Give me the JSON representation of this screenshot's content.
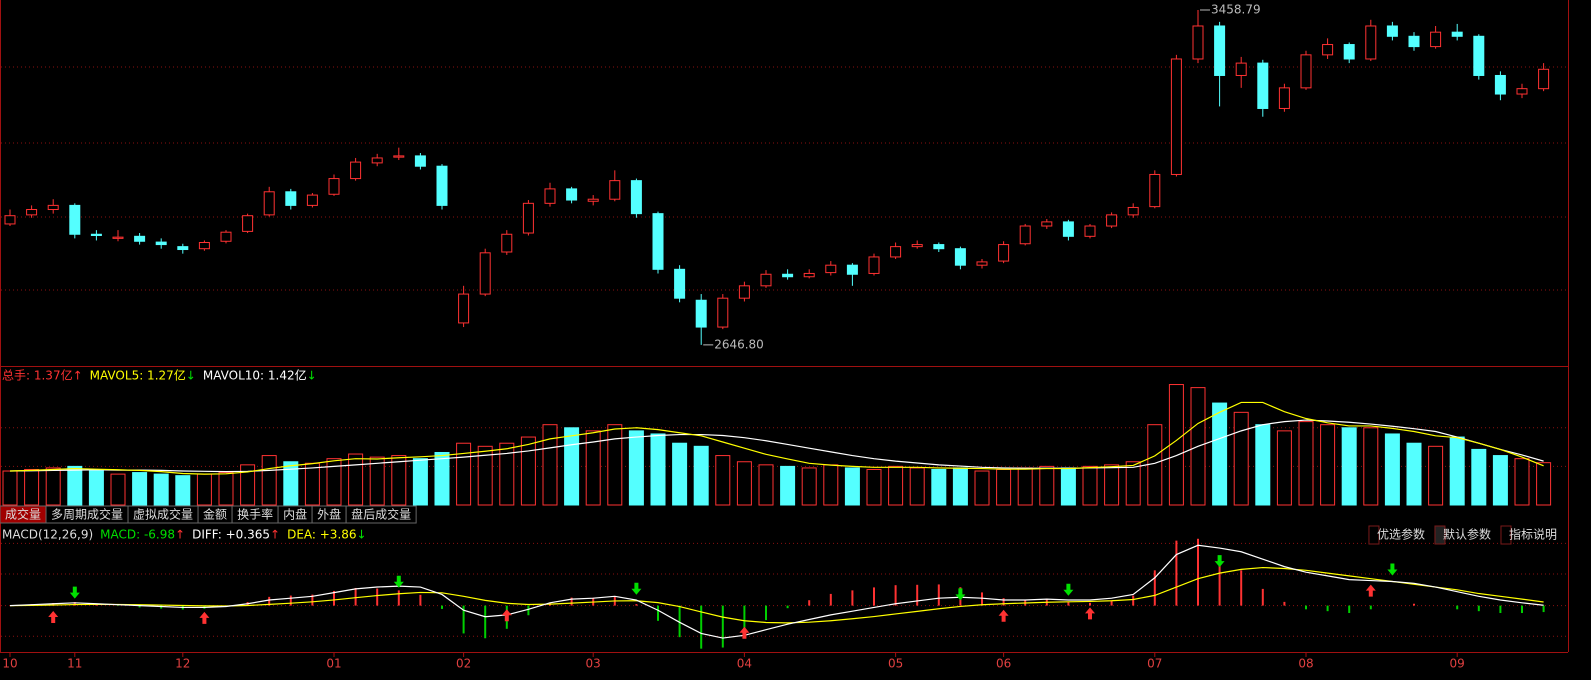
{
  "price_panel": {
    "ylim": [
      2598,
      3483
    ],
    "grid": [
      3320.6,
      3136.4,
      2957,
      2780
    ],
    "up_color": "#ff3232",
    "down_color": "#54ffff",
    "candles": [
      [
        2940,
        2975,
        2935,
        2960
      ],
      [
        2962,
        2985,
        2955,
        2975
      ],
      [
        2975,
        3000,
        2965,
        2985
      ],
      [
        2985,
        2990,
        2905,
        2915
      ],
      [
        2915,
        2925,
        2900,
        2912
      ],
      [
        2905,
        2925,
        2898,
        2908
      ],
      [
        2910,
        2918,
        2890,
        2898
      ],
      [
        2896,
        2905,
        2880,
        2890
      ],
      [
        2885,
        2892,
        2868,
        2878
      ],
      [
        2880,
        2900,
        2875,
        2895
      ],
      [
        2898,
        2925,
        2893,
        2920
      ],
      [
        2922,
        2965,
        2918,
        2960
      ],
      [
        2962,
        3030,
        2958,
        3018
      ],
      [
        3018,
        3025,
        2975,
        2985
      ],
      [
        2985,
        3015,
        2980,
        3010
      ],
      [
        3012,
        3060,
        3008,
        3050
      ],
      [
        3050,
        3100,
        3045,
        3090
      ],
      [
        3088,
        3110,
        3080,
        3100
      ],
      [
        3102,
        3125,
        3095,
        3105
      ],
      [
        3105,
        3112,
        3072,
        3080
      ],
      [
        3080,
        3085,
        2975,
        2985
      ],
      [
        2700,
        2790,
        2690,
        2770
      ],
      [
        2770,
        2880,
        2765,
        2870
      ],
      [
        2872,
        2925,
        2865,
        2915
      ],
      [
        2918,
        2998,
        2912,
        2990
      ],
      [
        2990,
        3040,
        2982,
        3025
      ],
      [
        3025,
        3030,
        2990,
        2998
      ],
      [
        2995,
        3010,
        2985,
        3000
      ],
      [
        3000,
        3070,
        2995,
        3045
      ],
      [
        3045,
        3050,
        2955,
        2965
      ],
      [
        2965,
        2970,
        2820,
        2830
      ],
      [
        2830,
        2840,
        2750,
        2760
      ],
      [
        2755,
        2770,
        2646.8,
        2690
      ],
      [
        2690,
        2770,
        2685,
        2760
      ],
      [
        2760,
        2800,
        2752,
        2790
      ],
      [
        2790,
        2828,
        2785,
        2818
      ],
      [
        2818,
        2830,
        2805,
        2812
      ],
      [
        2812,
        2830,
        2808,
        2820
      ],
      [
        2822,
        2850,
        2815,
        2840
      ],
      [
        2840,
        2845,
        2790,
        2818
      ],
      [
        2820,
        2868,
        2815,
        2860
      ],
      [
        2860,
        2895,
        2855,
        2885
      ],
      [
        2885,
        2900,
        2880,
        2890
      ],
      [
        2890,
        2895,
        2872,
        2880
      ],
      [
        2880,
        2885,
        2830,
        2840
      ],
      [
        2840,
        2855,
        2832,
        2848
      ],
      [
        2850,
        2898,
        2845,
        2890
      ],
      [
        2892,
        2940,
        2888,
        2935
      ],
      [
        2935,
        2952,
        2928,
        2945
      ],
      [
        2945,
        2950,
        2900,
        2910
      ],
      [
        2910,
        2940,
        2905,
        2935
      ],
      [
        2935,
        2968,
        2930,
        2962
      ],
      [
        2962,
        2990,
        2955,
        2980
      ],
      [
        2982,
        3070,
        2978,
        3060
      ],
      [
        3060,
        3350,
        3055,
        3340
      ],
      [
        3340,
        3458.79,
        3330,
        3420
      ],
      [
        3420,
        3430,
        3225,
        3300
      ],
      [
        3300,
        3345,
        3270,
        3330
      ],
      [
        3330,
        3338,
        3200,
        3220
      ],
      [
        3220,
        3280,
        3212,
        3270
      ],
      [
        3270,
        3360,
        3265,
        3350
      ],
      [
        3350,
        3390,
        3340,
        3375
      ],
      [
        3375,
        3380,
        3330,
        3340
      ],
      [
        3340,
        3435,
        3335,
        3420
      ],
      [
        3420,
        3430,
        3385,
        3395
      ],
      [
        3395,
        3405,
        3360,
        3370
      ],
      [
        3370,
        3420,
        3365,
        3405
      ],
      [
        3405,
        3425,
        3385,
        3395
      ],
      [
        3395,
        3400,
        3290,
        3300
      ],
      [
        3300,
        3310,
        3240,
        3255
      ],
      [
        3255,
        3280,
        3245,
        3268
      ],
      [
        3268,
        3330,
        3262,
        3315
      ]
    ],
    "high_mark": {
      "index": 55,
      "value": 3458.79,
      "label": "3458.79"
    },
    "low_mark": {
      "index": 32,
      "value": 2646.8,
      "label": "2646.80"
    }
  },
  "volume_panel": {
    "ylim": [
      0,
      4.5
    ],
    "grid": [
      1.25,
      2.5
    ],
    "volumes": [
      1.1,
      1.15,
      1.2,
      1.25,
      1.1,
      1.0,
      1.05,
      1.0,
      0.95,
      1.0,
      1.05,
      1.3,
      1.6,
      1.4,
      1.35,
      1.5,
      1.65,
      1.55,
      1.6,
      1.5,
      1.7,
      2.0,
      1.9,
      2.0,
      2.2,
      2.6,
      2.5,
      2.4,
      2.6,
      2.4,
      2.3,
      2.0,
      1.9,
      1.6,
      1.4,
      1.3,
      1.25,
      1.2,
      1.3,
      1.2,
      1.15,
      1.25,
      1.2,
      1.15,
      1.2,
      1.1,
      1.15,
      1.2,
      1.25,
      1.2,
      1.25,
      1.3,
      1.4,
      2.6,
      3.9,
      3.8,
      3.3,
      3.0,
      2.6,
      2.4,
      2.7,
      2.6,
      2.5,
      2.5,
      2.3,
      2.0,
      1.9,
      2.2,
      1.8,
      1.6,
      1.5,
      1.37
    ],
    "mavol5": [
      1.1,
      1.12,
      1.15,
      1.18,
      1.16,
      1.14,
      1.12,
      1.08,
      1.02,
      1.0,
      1.01,
      1.07,
      1.18,
      1.27,
      1.34,
      1.43,
      1.5,
      1.49,
      1.53,
      1.56,
      1.6,
      1.67,
      1.74,
      1.82,
      1.96,
      2.14,
      2.24,
      2.34,
      2.46,
      2.5,
      2.44,
      2.34,
      2.24,
      2.04,
      1.84,
      1.64,
      1.49,
      1.35,
      1.29,
      1.25,
      1.22,
      1.22,
      1.22,
      1.2,
      1.19,
      1.18,
      1.16,
      1.16,
      1.18,
      1.18,
      1.21,
      1.24,
      1.28,
      1.59,
      2.09,
      2.64,
      3.0,
      3.32,
      3.32,
      3.02,
      2.8,
      2.66,
      2.56,
      2.56,
      2.48,
      2.38,
      2.24,
      2.18,
      2.0,
      1.8,
      1.55,
      1.27
    ],
    "mavol10": [
      1.1,
      1.11,
      1.12,
      1.13,
      1.14,
      1.13,
      1.13,
      1.12,
      1.1,
      1.09,
      1.08,
      1.09,
      1.12,
      1.16,
      1.2,
      1.25,
      1.3,
      1.35,
      1.4,
      1.45,
      1.5,
      1.55,
      1.61,
      1.67,
      1.75,
      1.85,
      1.95,
      2.04,
      2.14,
      2.2,
      2.25,
      2.28,
      2.28,
      2.25,
      2.18,
      2.08,
      1.96,
      1.84,
      1.72,
      1.6,
      1.5,
      1.42,
      1.36,
      1.3,
      1.26,
      1.22,
      1.2,
      1.19,
      1.19,
      1.19,
      1.2,
      1.21,
      1.22,
      1.35,
      1.6,
      1.9,
      2.15,
      2.4,
      2.6,
      2.7,
      2.75,
      2.72,
      2.68,
      2.62,
      2.55,
      2.47,
      2.38,
      2.2,
      2.0,
      1.8,
      1.62,
      1.42
    ],
    "mavol5_color": "#ffff00",
    "mavol10_color": "#ffffff",
    "legend": [
      {
        "text": "总手: 1.37亿",
        "arrow": "↑",
        "color": "#ff3232",
        "arrow_color": "#ff3232"
      },
      {
        "text": "MAVOL5: 1.27亿",
        "arrow": "↓",
        "color": "#ffff00",
        "arrow_color": "#00e000"
      },
      {
        "text": "MAVOL10: 1.42亿",
        "arrow": "↓",
        "color": "#ffffff",
        "arrow_color": "#00e000"
      }
    ]
  },
  "tabs": {
    "items": [
      "成交量",
      "多周期成交量",
      "虚拟成交量",
      "金额",
      "换手率",
      "内盘",
      "外盘",
      "盘后成交量"
    ],
    "active": 0
  },
  "macd_panel": {
    "ylim": [
      -50,
      89
    ],
    "grid": [
      -33,
      0,
      34,
      67
    ],
    "legend": [
      {
        "text": "MACD(12,26,9)",
        "arrow": "",
        "color": "#dddddd",
        "arrow_color": "#dddddd"
      },
      {
        "text": "MACD: -6.98",
        "arrow": "↑",
        "color": "#00e000",
        "arrow_color": "#ff3232"
      },
      {
        "text": "DIFF: +0.365",
        "arrow": "↑",
        "color": "#ffffff",
        "arrow_color": "#ff3232"
      },
      {
        "text": "DEA: +3.86",
        "arrow": "↓",
        "color": "#ffff00",
        "arrow_color": "#00e000"
      }
    ],
    "diff": [
      0,
      1,
      2,
      3,
      2,
      1,
      0,
      -1,
      -2,
      -2,
      -1,
      2,
      6,
      8,
      10,
      14,
      18,
      20,
      21,
      20,
      12,
      -5,
      -12,
      -10,
      -4,
      3,
      7,
      8,
      10,
      6,
      -5,
      -18,
      -30,
      -35,
      -32,
      -26,
      -20,
      -15,
      -10,
      -6,
      -2,
      2,
      5,
      8,
      9,
      8,
      6,
      6,
      7,
      6,
      6,
      8,
      12,
      30,
      55,
      65,
      62,
      58,
      50,
      42,
      36,
      32,
      28,
      27,
      26,
      24,
      20,
      15,
      10,
      6,
      3,
      0.365
    ],
    "dea": [
      0,
      0.2,
      0.6,
      1.1,
      1.3,
      1.2,
      1.0,
      0.6,
      0.1,
      -0.3,
      -0.4,
      0.1,
      1.3,
      2.6,
      4.1,
      6.1,
      8.5,
      10.8,
      12.8,
      14.2,
      13.8,
      10.0,
      5.6,
      2.5,
      1.2,
      1.6,
      2.7,
      3.8,
      5.0,
      5.2,
      3.2,
      -1.0,
      -6.8,
      -12.4,
      -16.3,
      -18.2,
      -18.6,
      -17.9,
      -16.3,
      -14.2,
      -11.8,
      -9.0,
      -6.2,
      -3.4,
      -0.9,
      0.9,
      2.0,
      2.8,
      3.6,
      4.1,
      4.5,
      5.2,
      6.6,
      11,
      20,
      29,
      35,
      39,
      41,
      40,
      38,
      35,
      32,
      29,
      26,
      23,
      20,
      17,
      13,
      10,
      7,
      3.86
    ],
    "macd": [
      0,
      1.6,
      2.8,
      3.8,
      1.4,
      -0.4,
      -2,
      -3.2,
      -4.2,
      -3.4,
      -1.2,
      3.8,
      9.4,
      10.8,
      11.8,
      15.8,
      19,
      18.4,
      16.4,
      11.6,
      -3.6,
      -30,
      -35.2,
      -25,
      -10.4,
      2.8,
      8.6,
      8.4,
      10,
      1.6,
      -16.4,
      -34,
      -46.4,
      -45.2,
      -31.4,
      -15.6,
      -2.8,
      5.8,
      12.6,
      16.4,
      19.6,
      22,
      22.4,
      22.8,
      19.8,
      14.2,
      8,
      6.4,
      6.8,
      3.8,
      3,
      5.6,
      10.8,
      38,
      70,
      72,
      54,
      38,
      18,
      4,
      -4,
      -6,
      -8,
      -4,
      0,
      2,
      0,
      -4,
      -6,
      -8,
      -8,
      -6.98
    ],
    "diff_color": "#ffffff",
    "dea_color": "#ffff00",
    "buy_points": [
      2,
      9,
      23,
      34,
      46,
      50,
      63
    ],
    "sell_points": [
      3,
      18,
      29,
      44,
      49,
      56,
      64
    ]
  },
  "buttons": {
    "items": [
      "优选参数",
      "默认参数",
      "指标说明"
    ],
    "active": 1
  },
  "months": [
    {
      "label": "10",
      "index": 0
    },
    {
      "label": "11",
      "index": 3
    },
    {
      "label": "12",
      "index": 8
    },
    {
      "label": "01",
      "index": 15
    },
    {
      "label": "02",
      "index": 21
    },
    {
      "label": "03",
      "index": 27
    },
    {
      "label": "04",
      "index": 34
    },
    {
      "label": "05",
      "index": 41
    },
    {
      "label": "06",
      "index": 46
    },
    {
      "label": "07",
      "index": 53
    },
    {
      "label": "08",
      "index": 60
    },
    {
      "label": "09",
      "index": 67
    }
  ]
}
